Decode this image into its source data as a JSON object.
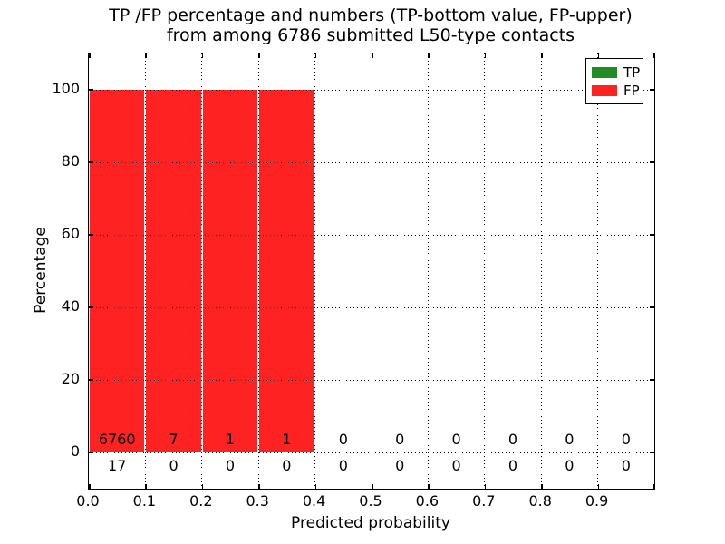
{
  "title": {
    "line1": "TP /FP percentage and numbers (TP-bottom value, FP-upper)",
    "line2": "from among 6786 submitted L50-type contacts"
  },
  "legend": {
    "items": [
      {
        "label": "TP",
        "color": "#228b22"
      },
      {
        "label": "FP",
        "color": "#ff2222"
      }
    ]
  },
  "chart_data": {
    "type": "bar",
    "stacked": true,
    "title": "TP /FP percentage and numbers (TP-bottom value, FP-upper) from among 6786 submitted L50-type contacts",
    "xlabel": "Predicted probability",
    "ylabel": "Percentage",
    "xlim": [
      0.0,
      1.0
    ],
    "ylim": [
      -10,
      110
    ],
    "xticks": [
      "0.0",
      "0.1",
      "0.2",
      "0.3",
      "0.4",
      "0.5",
      "0.6",
      "0.7",
      "0.8",
      "0.9"
    ],
    "yticks": [
      0,
      20,
      40,
      60,
      80,
      100
    ],
    "grid": true,
    "legend_position": "upper right",
    "bin_width": 0.1,
    "bin_starts": [
      0.0,
      0.1,
      0.2,
      0.3,
      0.4,
      0.5,
      0.6,
      0.7,
      0.8,
      0.9
    ],
    "total_contacts": 6786,
    "series": [
      {
        "name": "TP",
        "color": "#228b22",
        "counts": [
          17,
          0,
          0,
          0,
          0,
          0,
          0,
          0,
          0,
          0
        ]
      },
      {
        "name": "FP",
        "color": "#ff2222",
        "counts": [
          6760,
          7,
          1,
          1,
          0,
          0,
          0,
          0,
          0,
          0
        ]
      }
    ],
    "bar_total_percent": [
      100,
      100,
      100,
      100,
      0,
      0,
      0,
      0,
      0,
      0
    ],
    "annotations": {
      "fp_upper_row": [
        6760,
        7,
        1,
        1,
        0,
        0,
        0,
        0,
        0,
        0
      ],
      "tp_bottom_row": [
        17,
        0,
        0,
        0,
        0,
        0,
        0,
        0,
        0,
        0
      ]
    }
  }
}
